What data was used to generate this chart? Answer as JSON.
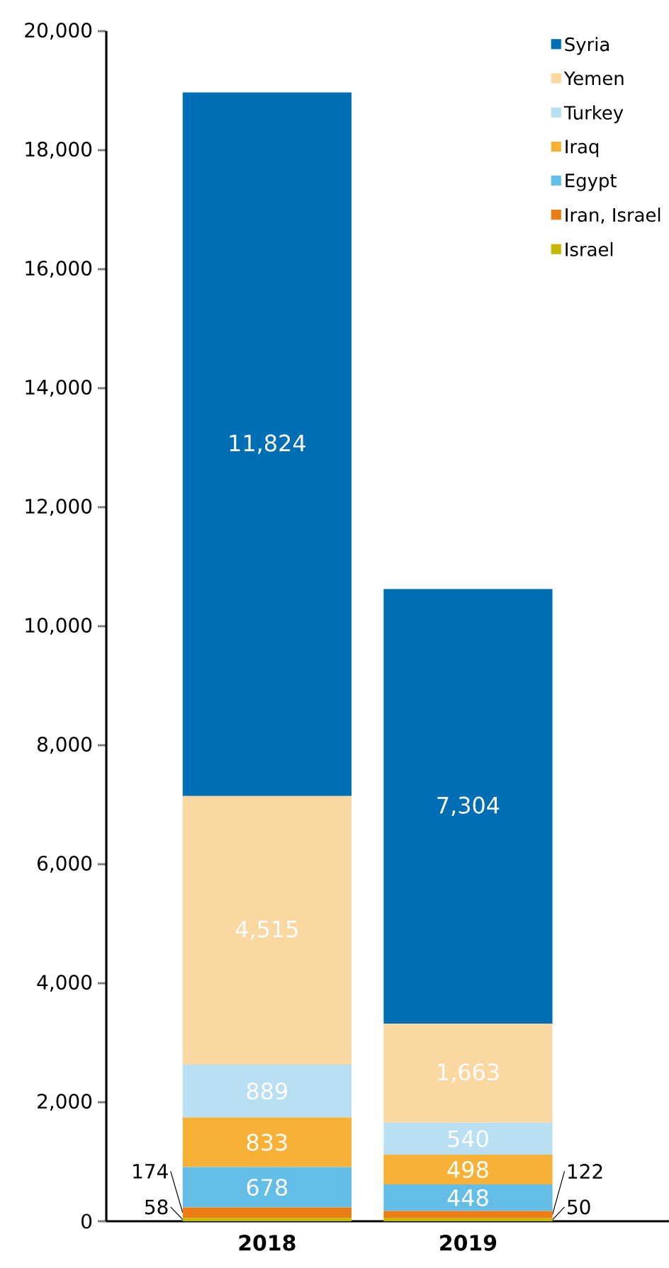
{
  "chart_data": {
    "type": "bar",
    "stacked": true,
    "categories": [
      "2018",
      "2019"
    ],
    "ylim": [
      0,
      20000
    ],
    "yticks": [
      0,
      {
        "value": 2000,
        "label": "2,000"
      },
      {
        "value": 4000,
        "label": "4,000"
      },
      {
        "value": 6000,
        "label": "6,000"
      },
      {
        "value": 8000,
        "label": "8,000"
      },
      {
        "value": 10000,
        "label": "10,000"
      },
      {
        "value": 12000,
        "label": "12,000"
      },
      {
        "value": 14000,
        "label": "14,000"
      },
      {
        "value": 16000,
        "label": "16,000"
      },
      {
        "value": 18000,
        "label": "18,000"
      },
      {
        "value": 20000,
        "label": "20,000"
      }
    ],
    "legend": "top right",
    "series": [
      {
        "name": "Israel",
        "color": "#c5b800",
        "values": [
          58,
          50
        ],
        "value_labels": [
          "58",
          "50"
        ]
      },
      {
        "name": "Iran, Israel",
        "color": "#ec7d15",
        "values": [
          174,
          122
        ],
        "value_labels": [
          "174",
          "122"
        ]
      },
      {
        "name": "Egypt",
        "color": "#63bde6",
        "values": [
          678,
          448
        ],
        "value_labels": [
          "678",
          "448"
        ]
      },
      {
        "name": "Iraq",
        "color": "#f7b136",
        "values": [
          833,
          498
        ],
        "value_labels": [
          "833",
          "498"
        ]
      },
      {
        "name": "Turkey",
        "color": "#b8dff2",
        "values": [
          889,
          540
        ],
        "value_labels": [
          "889",
          "540"
        ]
      },
      {
        "name": "Yemen",
        "color": "#fbd7a2",
        "values": [
          4515,
          1663
        ],
        "value_labels": [
          "4,515",
          "1,663"
        ]
      },
      {
        "name": "Syria",
        "color": "#006eb5",
        "values": [
          11824,
          7304
        ],
        "value_labels": [
          "11,824",
          "7,304"
        ]
      }
    ]
  }
}
